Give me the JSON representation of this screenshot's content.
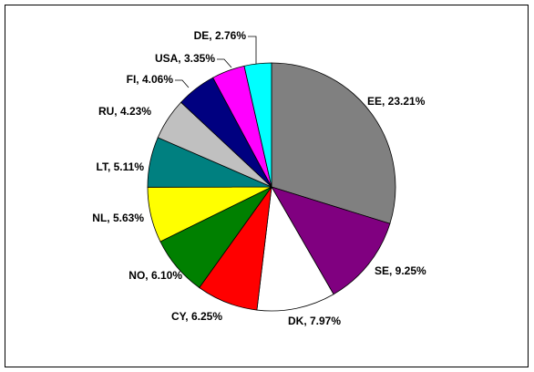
{
  "chart_data": {
    "type": "pie",
    "values": [
      23.21,
      9.25,
      7.97,
      6.25,
      6.1,
      5.63,
      5.11,
      4.23,
      4.06,
      3.35,
      2.76
    ],
    "value_labels": [
      "EE, 23.21%",
      "SE, 9.25%",
      "DK, 7.97%",
      "CY, 6.25%",
      "NO, 6.10%",
      "NL, 5.63%",
      "LT, 5.11%",
      "RU, 4.23%",
      "FI, 4.06%",
      "USA, 3.35%",
      "DE, 2.76%"
    ],
    "colors": [
      "#808080",
      "#800080",
      "#ffffff",
      "#ff0000",
      "#008000",
      "#ffff00",
      "#008080",
      "#c0c0c0",
      "#000080",
      "#ff00ff",
      "#00ffff"
    ]
  }
}
